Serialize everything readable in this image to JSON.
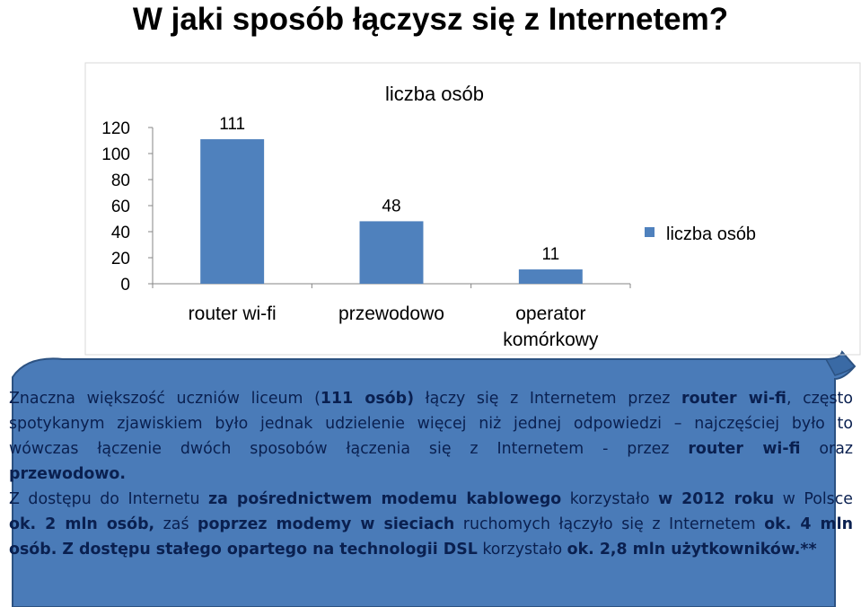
{
  "title": "W jaki sposób łączysz się z Internetem?",
  "chart_data": {
    "type": "bar",
    "title": "liczba osób",
    "categories": [
      [
        "router wi-fi"
      ],
      [
        "przewodowo"
      ],
      [
        "operator",
        "komórkowy"
      ]
    ],
    "series": [
      {
        "name": "liczba osób",
        "values": [
          111,
          48,
          11
        ]
      }
    ],
    "ylim": [
      0,
      120
    ],
    "yticks": [
      0,
      20,
      40,
      60,
      80,
      100,
      120
    ],
    "legend": "right",
    "grid": false,
    "bar_color": "#4f81bd"
  },
  "paragraph": {
    "lines": [
      [
        {
          "t": "Znaczna większość uczniów liceum (",
          "b": false
        },
        {
          "t": "111 osób)",
          "b": true
        },
        {
          "t": " łączy się z Internetem przez ",
          "b": false
        },
        {
          "t": "router wi-fi",
          "b": true
        },
        {
          "t": ", często",
          "b": false
        }
      ],
      [
        {
          "t": "spotykanym zjawiskiem było jednak udzielenie więcej niż jednej odpowiedzi – najczęściej było to",
          "b": false
        }
      ],
      [
        {
          "t": "wówczas łączenie dwóch sposobów łączenia się z Internetem - przez ",
          "b": false
        },
        {
          "t": "router wi-fi",
          "b": true
        },
        {
          "t": " oraz",
          "b": false
        }
      ],
      [
        {
          "t": "przewodowo.",
          "b": true
        }
      ],
      [
        {
          "t": "Z dostępu do Internetu ",
          "b": false
        },
        {
          "t": "za pośrednictwem modemu kablowego",
          "b": true
        },
        {
          "t": " korzystało ",
          "b": false
        },
        {
          "t": "w 2012 roku",
          "b": true
        },
        {
          "t": " w Polsce",
          "b": false
        }
      ],
      [
        {
          "t": "ok. 2 mln osób,",
          "b": true
        },
        {
          "t": " zaś ",
          "b": false
        },
        {
          "t": "poprzez modemy w sieciach",
          "b": true
        },
        {
          "t": " ruchomych łączyło się z Internetem ",
          "b": false
        },
        {
          "t": "ok. 4 mln",
          "b": true
        }
      ],
      [
        {
          "t": "osób. Z dostępu stałego opartego na technologii DSL",
          "b": true
        },
        {
          "t": " korzystało ",
          "b": false
        },
        {
          "t": "ok. 2,8 mln użytkowników.**",
          "b": true
        }
      ]
    ]
  }
}
